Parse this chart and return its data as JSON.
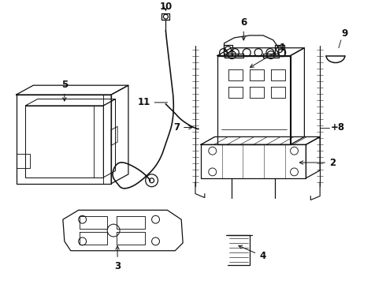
{
  "bg_color": "#ffffff",
  "line_color": "#111111",
  "figsize": [
    4.9,
    3.6
  ],
  "dpi": 100,
  "xlim": [
    0,
    490
  ],
  "ylim": [
    0,
    360
  ]
}
